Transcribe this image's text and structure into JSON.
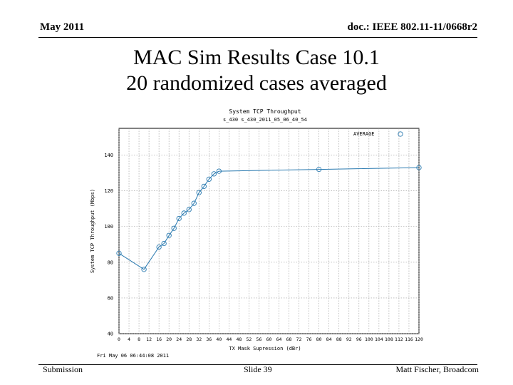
{
  "header": {
    "date": "May 2011",
    "doc": "doc.: IEEE 802.11-11/0668r2"
  },
  "title": {
    "line1": "MAC Sim Results Case 10.1",
    "line2": "20 randomized cases averaged"
  },
  "footer": {
    "left": "Submission",
    "center": "Slide 39",
    "right": "Matt Fischer, Broadcom"
  },
  "chart_data": {
    "type": "line",
    "title": "System TCP Throughput",
    "subtitle": "s_430 s_430_2011_05_06_40_54",
    "xlabel": "TX Mask Supression (dBr)",
    "ylabel": "System TCP Throughput (Mbps)",
    "timestamp": "Fri May 06 06:44:08 2011",
    "legend": "AVERAGE",
    "legend_position": "top-right",
    "grid": true,
    "xlim": [
      0,
      120
    ],
    "ylim": [
      40,
      155
    ],
    "yticks": [
      40,
      60,
      80,
      100,
      120,
      140
    ],
    "xticks": [
      0,
      4,
      8,
      12,
      16,
      20,
      24,
      28,
      32,
      36,
      40,
      44,
      48,
      52,
      56,
      60,
      64,
      68,
      72,
      76,
      80,
      84,
      88,
      92,
      96,
      100,
      104,
      108,
      112,
      116,
      120
    ],
    "xtick_labels": [
      "0",
      "4",
      "8",
      "12",
      "16",
      "20",
      "24",
      "28",
      "32",
      "36",
      "40",
      "44",
      "48",
      "52",
      "56",
      "60",
      "64",
      "68",
      "72",
      "76",
      "80",
      "84",
      "88",
      "92",
      "96",
      "100",
      "104",
      "108",
      "112",
      "116",
      "120"
    ],
    "series": [
      {
        "name": "AVERAGE",
        "color": "#2a7ab0",
        "x": [
          0,
          10,
          16,
          18,
          20,
          22,
          24,
          26,
          28,
          30,
          32,
          34,
          36,
          38,
          40,
          80,
          120
        ],
        "y": [
          85,
          76,
          88.5,
          90.5,
          95,
          99,
          104.5,
          107.5,
          109.5,
          113,
          119,
          122.5,
          126.5,
          129.5,
          131,
          132,
          133
        ]
      }
    ]
  }
}
